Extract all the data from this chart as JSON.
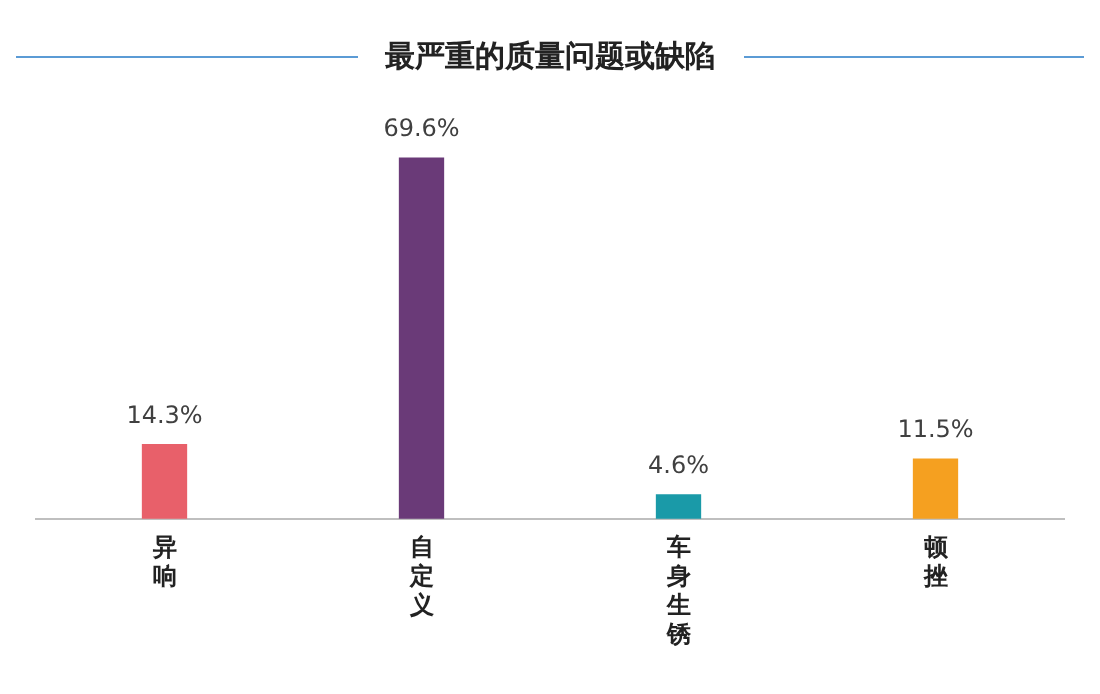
{
  "chart_data": {
    "type": "bar",
    "title": "最严重的质量问题或缺陷",
    "categories": [
      "异响",
      "自定义",
      "车身生锈",
      "顿挫"
    ],
    "values": [
      14.3,
      69.6,
      4.6,
      11.5
    ],
    "colors": [
      "#e8606a",
      "#6a3a78",
      "#1a9aa8",
      "#f5a020"
    ],
    "value_labels": [
      "14.3%",
      "69.6%",
      "4.6%",
      "11.5%"
    ],
    "legend": false,
    "grid": false
  }
}
